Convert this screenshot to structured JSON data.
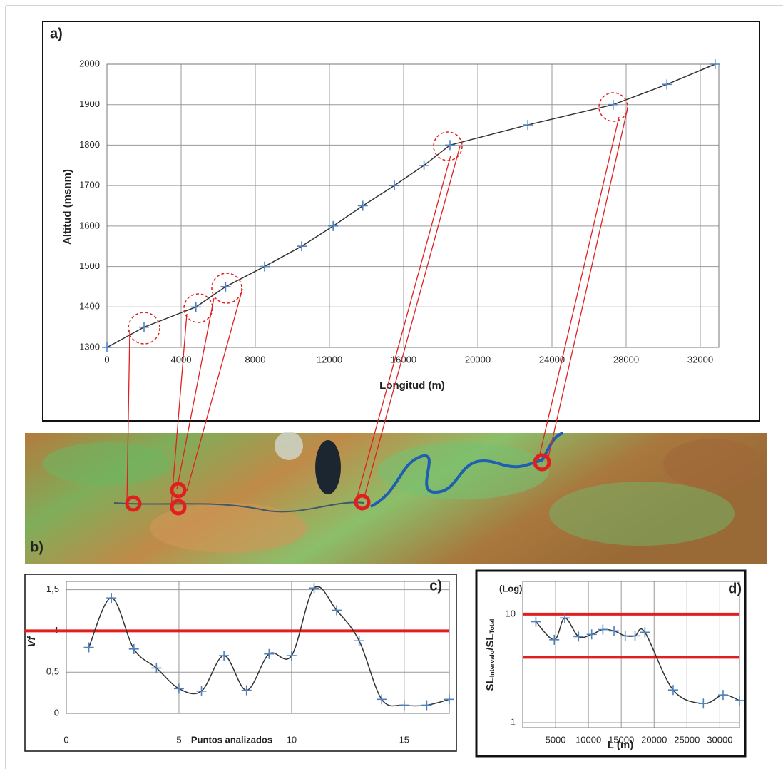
{
  "chart_data": [
    {
      "type": "line",
      "panel_label": "a)",
      "x_label": "Longitud (m)",
      "y_label": [
        "Altitud (msnm)"
      ],
      "xlim": [
        0,
        33000
      ],
      "ylim": [
        1300,
        2000
      ],
      "xticks": [
        0,
        4000,
        8000,
        12000,
        16000,
        20000,
        24000,
        28000,
        32000
      ],
      "yticks": [
        1300,
        1400,
        1500,
        1600,
        1700,
        1800,
        1900,
        2000
      ],
      "grid": true,
      "smooth": false,
      "line_color": "#333333",
      "series": [
        {
          "color": "#4f81bd",
          "x": [
            0,
            2000,
            4800,
            6400,
            8500,
            10500,
            12200,
            13800,
            15500,
            17100,
            18500,
            22700,
            27300,
            30200,
            32800
          ],
          "values": [
            1300,
            1350,
            1400,
            1450,
            1500,
            1550,
            1600,
            1650,
            1700,
            1750,
            1800,
            1850,
            1900,
            1950,
            2000
          ]
        }
      ]
    },
    {
      "type": "line",
      "panel_label": "c)",
      "x_label": "Puntos analizados",
      "y_label": [
        "Vf"
      ],
      "xlim": [
        0,
        17
      ],
      "ylim": [
        0,
        1.6
      ],
      "xticks": [
        0,
        5,
        10,
        15
      ],
      "yticks": [
        0,
        {
          "value": 0.5,
          "label": "0,5"
        },
        1,
        {
          "value": 1.5,
          "label": "1,5"
        }
      ],
      "grid": true,
      "smooth": true,
      "line_color": "#333333",
      "hlines": [
        1
      ],
      "hline_color": "#e02020",
      "series": [
        {
          "color": "#4f81bd",
          "x": [
            1,
            2,
            3,
            4,
            5,
            6,
            7,
            8,
            9,
            10,
            11,
            12,
            13,
            14,
            15,
            16,
            17
          ],
          "values": [
            0.8,
            1.4,
            0.78,
            0.55,
            0.3,
            0.27,
            0.7,
            0.28,
            0.72,
            0.7,
            1.52,
            1.25,
            0.88,
            0.17,
            0.1,
            0.1,
            0.17
          ]
        }
      ]
    },
    {
      "type": "line",
      "panel_label": "d)",
      "x_label": "L (m)",
      "y_label": [
        "SL",
        "Intervalo",
        "/SL",
        "Total"
      ],
      "y_note": "(Log)",
      "log_y": true,
      "xlim": [
        0,
        33000
      ],
      "ylim": [
        0.9,
        20
      ],
      "xticks": [
        5000,
        10000,
        15000,
        20000,
        25000,
        30000
      ],
      "yticks": [
        1,
        10
      ],
      "grid": true,
      "smooth": true,
      "line_color": "#333333",
      "hlines": [
        10,
        4
      ],
      "hline_color": "#e02020",
      "series": [
        {
          "color": "#4f81bd",
          "x": [
            2000,
            4800,
            6400,
            8500,
            10500,
            12200,
            13900,
            15600,
            17100,
            18600,
            22900,
            27500,
            30500,
            33000
          ],
          "values": [
            8.5,
            5.8,
            9.2,
            6.2,
            6.5,
            7.2,
            7.0,
            6.3,
            6.3,
            6.8,
            2.0,
            1.5,
            1.8,
            1.6
          ]
        }
      ]
    }
  ],
  "image_panel": {
    "label": "b)"
  }
}
